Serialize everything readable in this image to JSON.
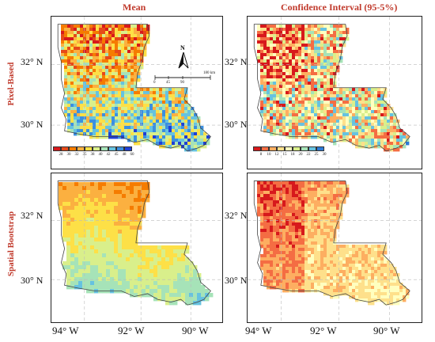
{
  "columns": {
    "mean": "Mean",
    "ci": "Confidence Interval (95-5%)"
  },
  "rows": {
    "pixel": "Pixel-Based",
    "spatial": "Spatial Bootstrap"
  },
  "lat_labels": [
    "32° N",
    "30° N"
  ],
  "lon_labels": [
    "94° W",
    "92° W",
    "90° W"
  ],
  "legend_mean": {
    "ticks": [
      "28",
      "30",
      "32",
      "35",
      "38",
      "40",
      "42",
      "45",
      "48",
      "60"
    ],
    "colors": [
      "#d7191c",
      "#e64a19",
      "#f57c00",
      "#fbb040",
      "#fde047",
      "#d9ef8b",
      "#a6e3b8",
      "#66c2e0",
      "#3b8fe0",
      "#1f3fd6"
    ]
  },
  "legend_ci": {
    "ticks": [
      "8",
      "10",
      "12",
      "15",
      "18",
      "20",
      "22",
      "25",
      "30"
    ],
    "colors": [
      "#d7191c",
      "#f46d43",
      "#fdae61",
      "#fee08b",
      "#ffffbf",
      "#d9ef8b",
      "#a6e3b8",
      "#66c2e0",
      "#2c7bd6"
    ]
  },
  "scale_bar": {
    "ticks": [
      "0",
      "45",
      "90",
      "180 km"
    ]
  },
  "north_arrow": "N"
}
